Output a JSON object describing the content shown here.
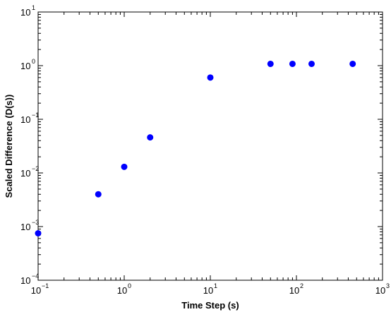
{
  "chart_data": {
    "type": "scatter",
    "xlabel": "Time Step (s)",
    "ylabel": "Scaled Difference (D(s))",
    "xscale": "log",
    "yscale": "log",
    "xlim": [
      0.1,
      1000
    ],
    "ylim": [
      0.0001,
      10
    ],
    "grid": false,
    "marker_color": "#0000ff",
    "x_ticks": [
      {
        "base": "10",
        "exp": "−1",
        "value": 0.1
      },
      {
        "base": "10",
        "exp": "0",
        "value": 1
      },
      {
        "base": "10",
        "exp": "1",
        "value": 10
      },
      {
        "base": "10",
        "exp": "2",
        "value": 100
      },
      {
        "base": "10",
        "exp": "3",
        "value": 1000
      }
    ],
    "y_ticks": [
      {
        "base": "10",
        "exp": "−4",
        "value": 0.0001
      },
      {
        "base": "10",
        "exp": "−3",
        "value": 0.001
      },
      {
        "base": "10",
        "exp": "−2",
        "value": 0.01
      },
      {
        "base": "10",
        "exp": "−1",
        "value": 0.1
      },
      {
        "base": "10",
        "exp": "0",
        "value": 1
      },
      {
        "base": "10",
        "exp": "1",
        "value": 10
      }
    ],
    "series": [
      {
        "x": [
          0.1,
          0.5,
          1,
          2,
          10,
          50,
          90,
          150,
          450
        ],
        "y": [
          0.00075,
          0.004,
          0.013,
          0.046,
          0.6,
          1.08,
          1.08,
          1.08,
          1.08
        ]
      }
    ]
  }
}
